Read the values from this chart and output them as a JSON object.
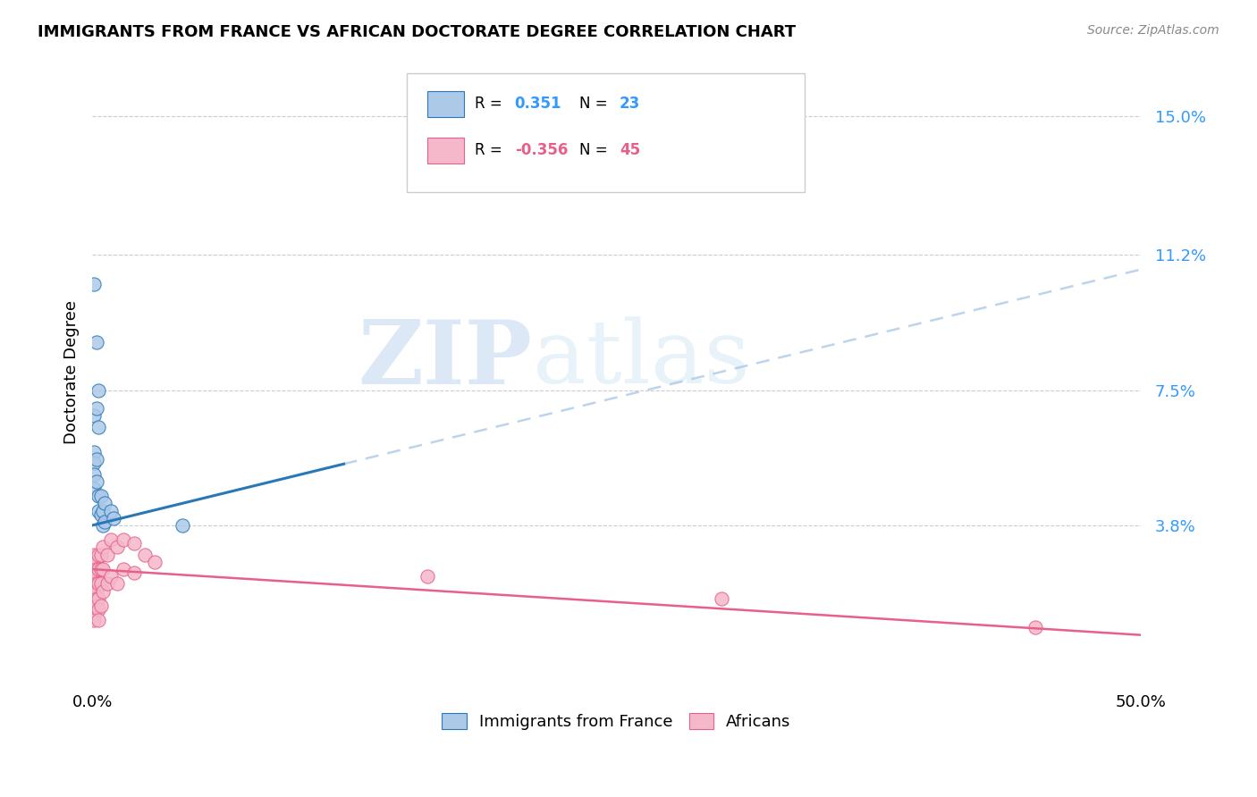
{
  "title": "IMMIGRANTS FROM FRANCE VS AFRICAN DOCTORATE DEGREE CORRELATION CHART",
  "source": "Source: ZipAtlas.com",
  "ylabel": "Doctorate Degree",
  "yticks": [
    "3.8%",
    "7.5%",
    "11.2%",
    "15.0%"
  ],
  "yticks_vals": [
    0.038,
    0.075,
    0.112,
    0.15
  ],
  "xlim": [
    0.0,
    0.5
  ],
  "ylim": [
    -0.005,
    0.165
  ],
  "r_france": 0.351,
  "n_france": 23,
  "r_african": -0.356,
  "n_african": 45,
  "france_color": "#adc9e8",
  "african_color": "#f5b8cb",
  "france_line_color": "#2878b8",
  "african_line_color": "#e8608a",
  "dashed_line_color": "#adc9e8",
  "background_color": "#ffffff",
  "france_line_x0": 0.0,
  "france_line_y0": 0.038,
  "france_line_x1": 0.5,
  "france_line_y1": 0.108,
  "african_line_x0": 0.0,
  "african_line_y0": 0.026,
  "african_line_x1": 0.5,
  "african_line_y1": 0.008,
  "france_points": [
    [
      0.001,
      0.104
    ],
    [
      0.002,
      0.088
    ],
    [
      0.003,
      0.075
    ],
    [
      0.001,
      0.068
    ],
    [
      0.002,
      0.07
    ],
    [
      0.003,
      0.065
    ],
    [
      0.001,
      0.058
    ],
    [
      0.001,
      0.055
    ],
    [
      0.001,
      0.052
    ],
    [
      0.001,
      0.048
    ],
    [
      0.002,
      0.056
    ],
    [
      0.002,
      0.05
    ],
    [
      0.003,
      0.046
    ],
    [
      0.003,
      0.042
    ],
    [
      0.004,
      0.046
    ],
    [
      0.004,
      0.041
    ],
    [
      0.005,
      0.038
    ],
    [
      0.005,
      0.042
    ],
    [
      0.006,
      0.044
    ],
    [
      0.006,
      0.039
    ],
    [
      0.009,
      0.042
    ],
    [
      0.01,
      0.04
    ],
    [
      0.043,
      0.038
    ]
  ],
  "african_points": [
    [
      0.001,
      0.03
    ],
    [
      0.001,
      0.028
    ],
    [
      0.001,
      0.026
    ],
    [
      0.001,
      0.024
    ],
    [
      0.001,
      0.022
    ],
    [
      0.001,
      0.02
    ],
    [
      0.001,
      0.018
    ],
    [
      0.001,
      0.016
    ],
    [
      0.001,
      0.014
    ],
    [
      0.001,
      0.012
    ],
    [
      0.002,
      0.028
    ],
    [
      0.002,
      0.026
    ],
    [
      0.002,
      0.024
    ],
    [
      0.002,
      0.022
    ],
    [
      0.002,
      0.02
    ],
    [
      0.002,
      0.018
    ],
    [
      0.002,
      0.016
    ],
    [
      0.003,
      0.03
    ],
    [
      0.003,
      0.026
    ],
    [
      0.003,
      0.022
    ],
    [
      0.003,
      0.018
    ],
    [
      0.003,
      0.015
    ],
    [
      0.003,
      0.012
    ],
    [
      0.004,
      0.03
    ],
    [
      0.004,
      0.026
    ],
    [
      0.004,
      0.022
    ],
    [
      0.004,
      0.016
    ],
    [
      0.005,
      0.032
    ],
    [
      0.005,
      0.026
    ],
    [
      0.005,
      0.02
    ],
    [
      0.007,
      0.03
    ],
    [
      0.007,
      0.022
    ],
    [
      0.009,
      0.034
    ],
    [
      0.009,
      0.024
    ],
    [
      0.012,
      0.032
    ],
    [
      0.012,
      0.022
    ],
    [
      0.015,
      0.034
    ],
    [
      0.015,
      0.026
    ],
    [
      0.02,
      0.033
    ],
    [
      0.02,
      0.025
    ],
    [
      0.025,
      0.03
    ],
    [
      0.03,
      0.028
    ],
    [
      0.16,
      0.024
    ],
    [
      0.3,
      0.018
    ],
    [
      0.45,
      0.01
    ]
  ],
  "watermark_zip": "ZIP",
  "watermark_atlas": "atlas",
  "legend_france_label": "Immigrants from France",
  "legend_african_label": "Africans"
}
